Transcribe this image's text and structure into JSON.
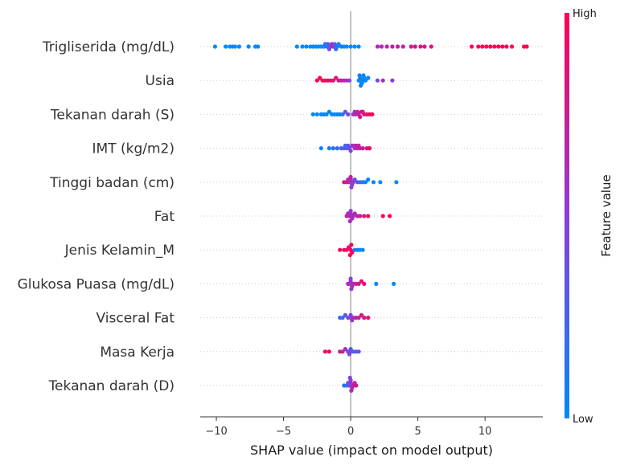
{
  "chart_data": {
    "type": "scatter",
    "subtype": "shap-beeswarm",
    "xlabel": "SHAP value (impact on model output)",
    "xlim": [
      -11.2,
      14.3
    ],
    "xticks": [
      {
        "value": -10,
        "label": "−10"
      },
      {
        "value": -5,
        "label": "−5"
      },
      {
        "value": 0,
        "label": "0"
      },
      {
        "value": 5,
        "label": "5"
      },
      {
        "value": 10,
        "label": "10"
      }
    ],
    "colorbar": {
      "title": "Feature value",
      "high_label": "High",
      "low_label": "Low",
      "low_color": "#008afb",
      "mid_color": "#8f3bd8",
      "high_color": "#ff0052"
    },
    "features": [
      {
        "name": "Trigliserida (mg/dL)",
        "points": [
          [
            -10.1,
            0.0
          ],
          [
            -9.3,
            0.0
          ],
          [
            -9.0,
            0.0
          ],
          [
            -8.8,
            0.0
          ],
          [
            -8.6,
            0.0
          ],
          [
            -8.3,
            0.0
          ],
          [
            -7.6,
            0.0
          ],
          [
            -7.1,
            0.0
          ],
          [
            -6.9,
            0.0
          ],
          [
            -4.0,
            0.0
          ],
          [
            -3.6,
            0.0
          ],
          [
            -3.3,
            0.0
          ],
          [
            -3.0,
            0.0
          ],
          [
            -2.8,
            0.0
          ],
          [
            -2.6,
            0.0
          ],
          [
            -2.4,
            0.0
          ],
          [
            -2.2,
            0.0
          ],
          [
            -2.0,
            0.0
          ],
          [
            -1.9,
            0.1
          ],
          [
            -1.8,
            0.15
          ],
          [
            -1.7,
            0.25
          ],
          [
            -1.6,
            0.4
          ],
          [
            -1.5,
            0.5
          ],
          [
            -1.4,
            0.6
          ],
          [
            -1.3,
            0.5
          ],
          [
            -1.2,
            0.35
          ],
          [
            -1.1,
            0.2
          ],
          [
            -1.0,
            0.12
          ],
          [
            -0.9,
            0.05
          ],
          [
            -0.7,
            0.02
          ],
          [
            -0.5,
            0.0
          ],
          [
            -0.3,
            0.0
          ],
          [
            0.0,
            0.0
          ],
          [
            0.3,
            0.0
          ],
          [
            0.6,
            0.0
          ],
          [
            2.0,
            0.62
          ],
          [
            2.3,
            0.66
          ],
          [
            2.7,
            0.68
          ],
          [
            3.1,
            0.72
          ],
          [
            3.5,
            0.7
          ],
          [
            3.9,
            0.68
          ],
          [
            4.5,
            0.74
          ],
          [
            4.8,
            0.8
          ],
          [
            5.2,
            0.8
          ],
          [
            5.5,
            0.78
          ],
          [
            6.0,
            0.82
          ],
          [
            9.0,
            1.0
          ],
          [
            9.5,
            0.95
          ],
          [
            9.8,
            1.0
          ],
          [
            10.1,
            1.0
          ],
          [
            10.4,
            0.95
          ],
          [
            10.7,
            1.0
          ],
          [
            11.0,
            1.0
          ],
          [
            11.3,
            0.95
          ],
          [
            11.6,
            1.0
          ],
          [
            12.0,
            1.0
          ],
          [
            12.9,
            1.0
          ],
          [
            13.1,
            1.0
          ]
        ]
      },
      {
        "name": "Usia",
        "points": [
          [
            -2.5,
            1.0
          ],
          [
            -2.3,
            1.0
          ],
          [
            -2.1,
            0.95
          ],
          [
            -1.9,
            1.0
          ],
          [
            -1.7,
            0.95
          ],
          [
            -1.5,
            0.9
          ],
          [
            -1.3,
            0.88
          ],
          [
            -1.1,
            0.85
          ],
          [
            -0.9,
            0.8
          ],
          [
            -0.7,
            0.75
          ],
          [
            -0.5,
            0.7
          ],
          [
            -0.3,
            0.62
          ],
          [
            -0.1,
            0.5
          ],
          [
            0.6,
            0.0
          ],
          [
            0.7,
            0.05
          ],
          [
            0.8,
            0.1
          ],
          [
            0.9,
            0.05
          ],
          [
            1.0,
            0.0
          ],
          [
            0.65,
            0.08
          ],
          [
            0.75,
            0.12
          ],
          [
            0.85,
            0.0
          ],
          [
            0.95,
            0.02
          ],
          [
            1.1,
            0.0
          ],
          [
            1.3,
            0.05
          ],
          [
            2.0,
            0.4
          ],
          [
            2.4,
            0.6
          ],
          [
            3.1,
            0.5
          ]
        ]
      },
      {
        "name": "Tekanan darah  (S)",
        "points": [
          [
            -2.8,
            0.0
          ],
          [
            -2.5,
            0.0
          ],
          [
            -2.2,
            0.0
          ],
          [
            -2.0,
            0.02
          ],
          [
            -1.8,
            0.0
          ],
          [
            -1.6,
            0.05
          ],
          [
            -1.4,
            0.0
          ],
          [
            -1.2,
            0.0
          ],
          [
            -1.0,
            0.02
          ],
          [
            -0.8,
            0.05
          ],
          [
            -0.6,
            0.15
          ],
          [
            -0.4,
            0.3
          ],
          [
            -0.2,
            0.45
          ],
          [
            0.2,
            0.55
          ],
          [
            0.4,
            0.65
          ],
          [
            0.5,
            0.7
          ],
          [
            0.6,
            0.75
          ],
          [
            0.8,
            0.8
          ],
          [
            1.0,
            0.85
          ],
          [
            1.2,
            0.9
          ],
          [
            1.4,
            0.95
          ],
          [
            1.6,
            1.0
          ],
          [
            0.3,
            0.6
          ],
          [
            0.7,
            0.78
          ],
          [
            0.9,
            0.82
          ]
        ]
      },
      {
        "name": "IMT (kg/m2)",
        "points": [
          [
            -2.2,
            0.0
          ],
          [
            -1.6,
            0.1
          ],
          [
            -1.3,
            0.12
          ],
          [
            -1.0,
            0.18
          ],
          [
            -0.7,
            0.25
          ],
          [
            -0.5,
            0.3
          ],
          [
            -0.3,
            0.35
          ],
          [
            -0.1,
            0.4
          ],
          [
            0.1,
            0.5
          ],
          [
            0.3,
            0.6
          ],
          [
            0.5,
            0.65
          ],
          [
            0.7,
            0.72
          ],
          [
            0.9,
            0.78
          ],
          [
            1.2,
            0.85
          ],
          [
            1.4,
            1.0
          ],
          [
            -0.4,
            0.2
          ],
          [
            0.2,
            0.55
          ],
          [
            0.4,
            0.7
          ],
          [
            0.6,
            0.68
          ],
          [
            -0.2,
            0.32
          ],
          [
            0.0,
            0.45
          ]
        ]
      },
      {
        "name": "Tinggi badan (cm)",
        "points": [
          [
            -0.5,
            0.8
          ],
          [
            -0.3,
            0.75
          ],
          [
            -0.2,
            0.7
          ],
          [
            -0.1,
            0.65
          ],
          [
            0.0,
            0.6
          ],
          [
            0.1,
            0.55
          ],
          [
            0.2,
            0.5
          ],
          [
            0.3,
            0.4
          ],
          [
            0.5,
            0.3
          ],
          [
            0.7,
            0.2
          ],
          [
            0.9,
            0.1
          ],
          [
            1.1,
            0.05
          ],
          [
            1.3,
            0.0
          ],
          [
            1.7,
            0.0
          ],
          [
            2.2,
            0.0
          ],
          [
            3.4,
            0.0
          ],
          [
            0.0,
            0.7
          ],
          [
            0.05,
            0.5
          ]
        ]
      },
      {
        "name": "Fat",
        "points": [
          [
            -0.3,
            0.7
          ],
          [
            -0.2,
            0.72
          ],
          [
            -0.1,
            0.68
          ],
          [
            0.0,
            0.6
          ],
          [
            0.1,
            0.55
          ],
          [
            0.2,
            0.6
          ],
          [
            0.3,
            0.65
          ],
          [
            0.5,
            0.7
          ],
          [
            0.7,
            0.75
          ],
          [
            1.0,
            0.85
          ],
          [
            1.3,
            0.9
          ],
          [
            2.4,
            0.95
          ],
          [
            2.9,
            1.0
          ],
          [
            0.0,
            0.5
          ],
          [
            -0.05,
            0.62
          ]
        ]
      },
      {
        "name": "Jenis Kelamin_M",
        "points": [
          [
            -0.8,
            0.95
          ],
          [
            -0.5,
            0.95
          ],
          [
            -0.3,
            0.95
          ],
          [
            -0.15,
            0.95
          ],
          [
            0.0,
            0.95
          ],
          [
            -0.1,
            0.9
          ],
          [
            0.1,
            1.0
          ],
          [
            0.3,
            0.1
          ],
          [
            0.5,
            0.05
          ],
          [
            0.7,
            0.0
          ],
          [
            0.9,
            0.0
          ],
          [
            0.05,
            0.95
          ],
          [
            -0.05,
            1.0
          ]
        ]
      },
      {
        "name": "Glukosa Puasa (mg/dL)",
        "points": [
          [
            -0.2,
            0.7
          ],
          [
            -0.1,
            0.6
          ],
          [
            0.0,
            0.55
          ],
          [
            0.1,
            0.6
          ],
          [
            0.2,
            0.65
          ],
          [
            0.4,
            0.75
          ],
          [
            0.6,
            0.8
          ],
          [
            0.8,
            0.85
          ],
          [
            1.0,
            0.9
          ],
          [
            1.9,
            0.0
          ],
          [
            3.2,
            0.0
          ],
          [
            0.0,
            0.5
          ],
          [
            0.05,
            0.52
          ]
        ]
      },
      {
        "name": "Visceral Fat",
        "points": [
          [
            -0.8,
            0.2
          ],
          [
            -0.6,
            0.25
          ],
          [
            -0.4,
            0.3
          ],
          [
            -0.2,
            0.4
          ],
          [
            0.0,
            0.5
          ],
          [
            0.2,
            0.6
          ],
          [
            0.4,
            0.7
          ],
          [
            0.6,
            0.75
          ],
          [
            0.8,
            0.8
          ],
          [
            1.0,
            0.85
          ],
          [
            1.3,
            0.9
          ],
          [
            0.0,
            0.45
          ],
          [
            0.1,
            0.55
          ]
        ]
      },
      {
        "name": "Masa Kerja",
        "points": [
          [
            -1.9,
            1.0
          ],
          [
            -1.6,
            0.95
          ],
          [
            -0.8,
            0.8
          ],
          [
            -0.6,
            0.7
          ],
          [
            -0.4,
            0.55
          ],
          [
            -0.2,
            0.4
          ],
          [
            0.0,
            0.3
          ],
          [
            0.2,
            0.25
          ],
          [
            0.4,
            0.3
          ],
          [
            0.6,
            0.4
          ],
          [
            0.0,
            0.35
          ],
          [
            -0.1,
            0.45
          ]
        ]
      },
      {
        "name": "Tekanan darah  (D)",
        "points": [
          [
            -0.5,
            0.1
          ],
          [
            -0.3,
            0.2
          ],
          [
            -0.2,
            0.3
          ],
          [
            -0.1,
            0.4
          ],
          [
            0.0,
            0.5
          ],
          [
            0.1,
            0.6
          ],
          [
            0.2,
            0.7
          ],
          [
            0.3,
            0.75
          ],
          [
            0.4,
            0.8
          ],
          [
            0.0,
            0.55
          ],
          [
            0.05,
            0.65
          ],
          [
            -0.05,
            0.45
          ]
        ]
      }
    ]
  }
}
